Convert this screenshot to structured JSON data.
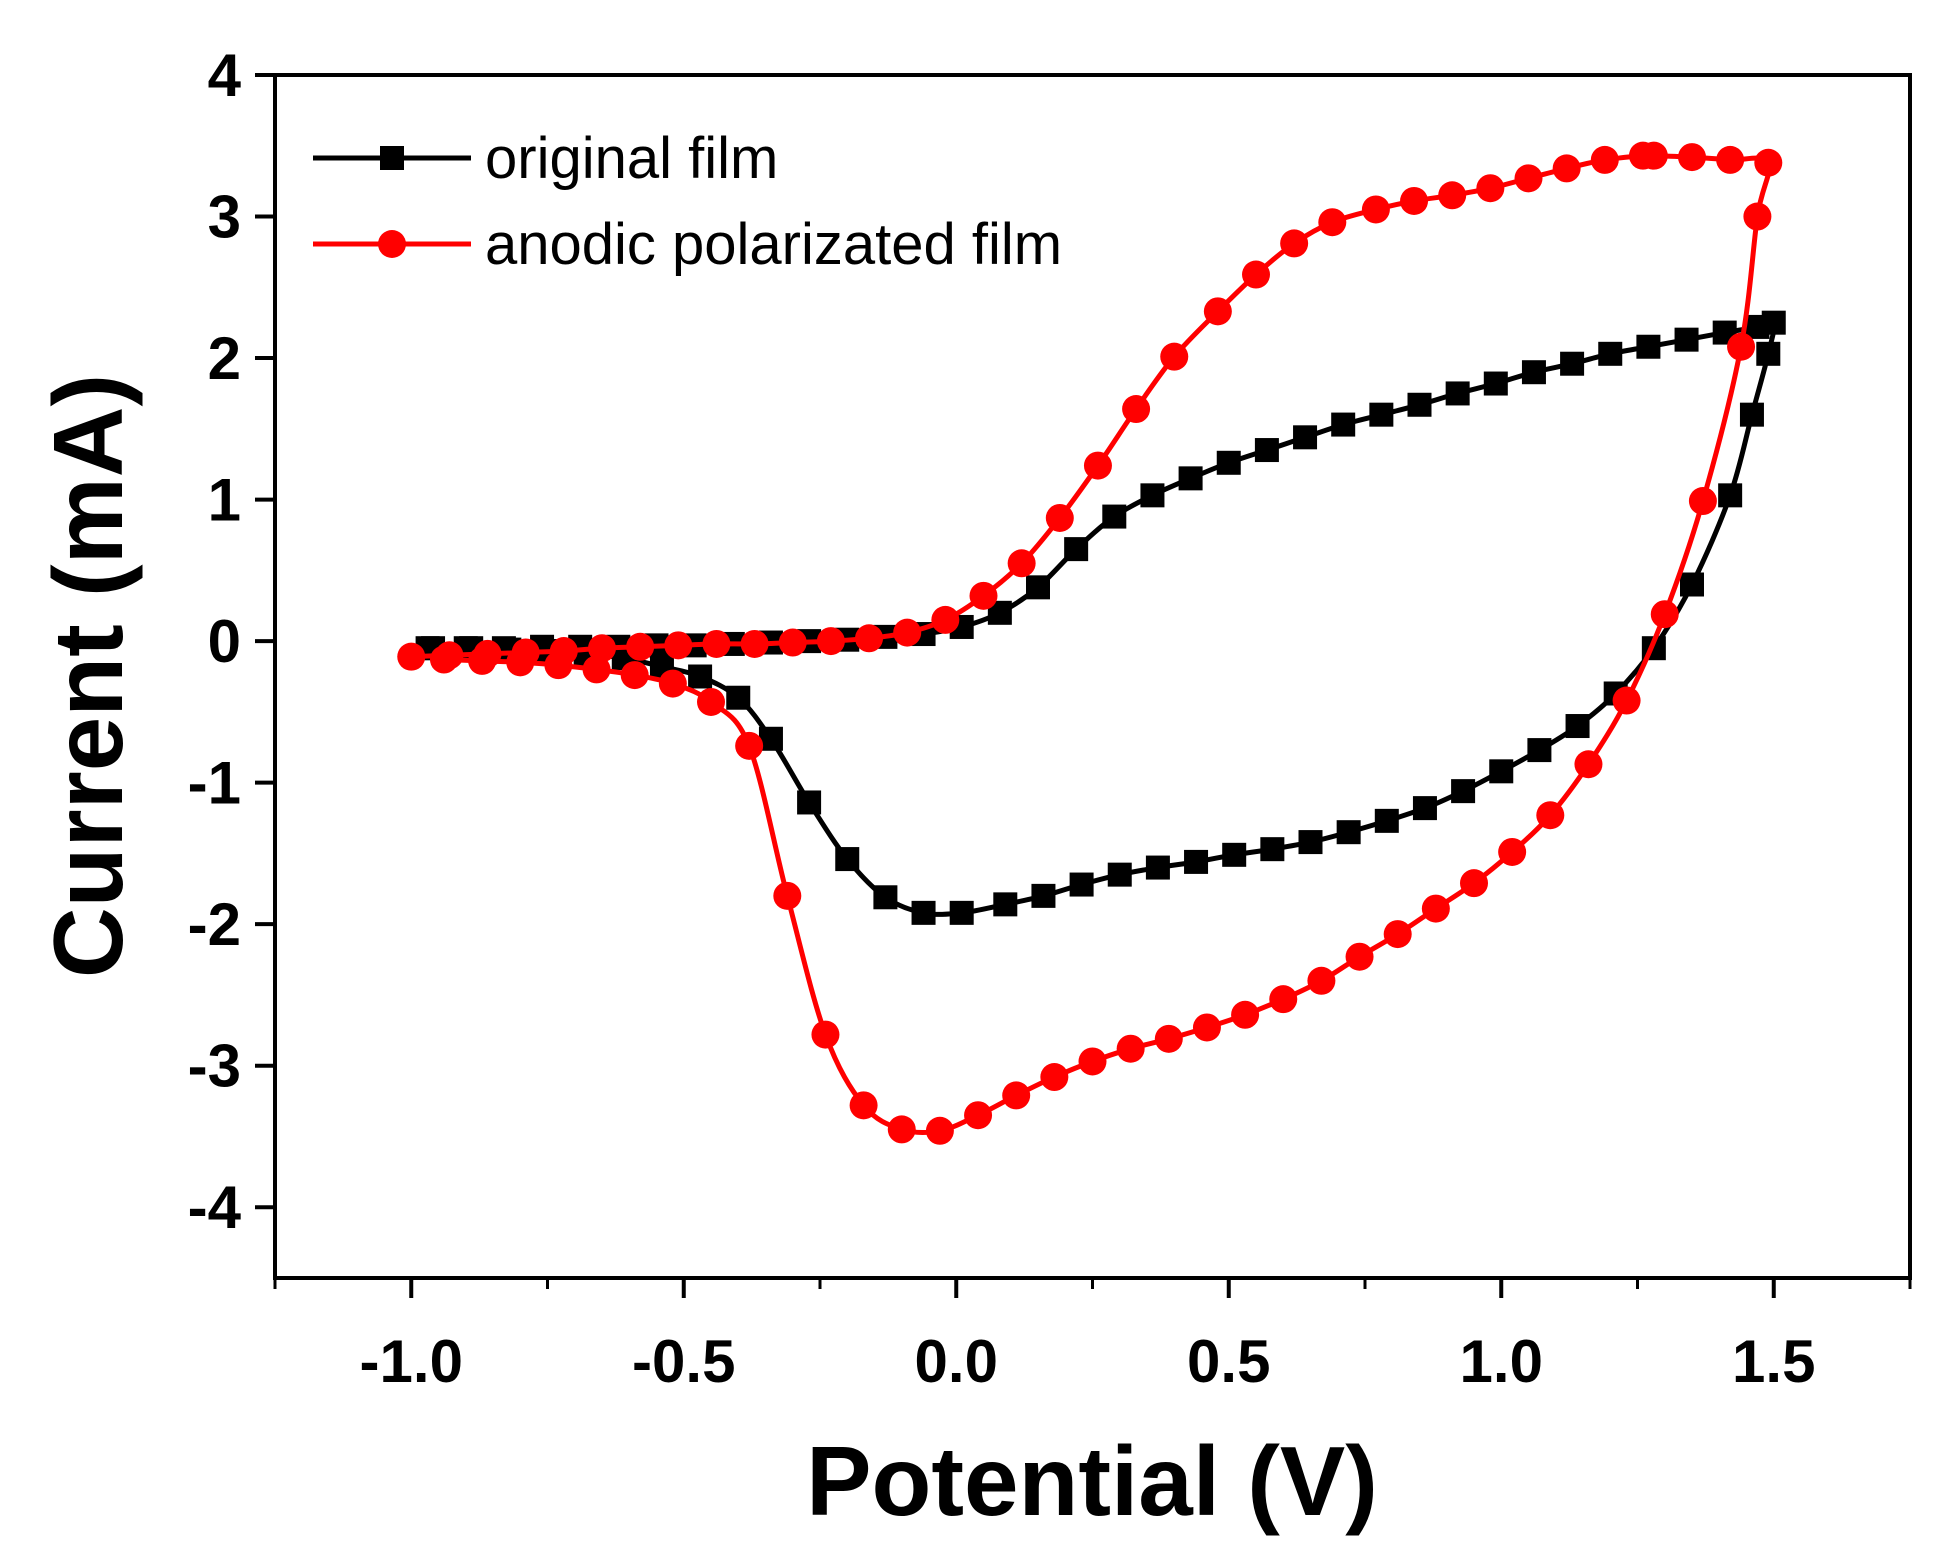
{
  "chart_data": {
    "type": "line",
    "title": "",
    "xlabel": "Potential (V)",
    "ylabel": "Current (mA)",
    "xlim": [
      -1.25,
      1.75
    ],
    "ylim": [
      -4.5,
      4.0
    ],
    "xticks": [
      -1.0,
      -0.5,
      0.0,
      0.5,
      1.0,
      1.5
    ],
    "xtick_labels": [
      "-1.0",
      "-0.5",
      "0.0",
      "0.5",
      "1.0",
      "1.5"
    ],
    "yticks": [
      -4,
      -3,
      -2,
      -1,
      0,
      1,
      2,
      3,
      4
    ],
    "ytick_labels": [
      "-4",
      "-3",
      "-2",
      "-1",
      "0",
      "1",
      "2",
      "3",
      "4"
    ],
    "grid": false,
    "legend_position": "top-left",
    "series": [
      {
        "name": "original film",
        "color": "#000000",
        "marker": "square",
        "x": [
          -0.97,
          -0.9,
          -0.83,
          -0.76,
          -0.69,
          -0.62,
          -0.55,
          -0.48,
          -0.41,
          -0.34,
          -0.27,
          -0.2,
          -0.13,
          -0.06,
          0.01,
          0.08,
          0.15,
          0.22,
          0.29,
          0.36,
          0.43,
          0.5,
          0.57,
          0.64,
          0.71,
          0.78,
          0.85,
          0.92,
          0.99,
          1.06,
          1.13,
          1.2,
          1.27,
          1.34,
          1.41,
          1.47,
          1.5,
          1.49,
          1.46,
          1.42,
          1.35,
          1.28,
          1.21,
          1.14,
          1.07,
          1.0,
          0.93,
          0.86,
          0.79,
          0.72,
          0.65,
          0.58,
          0.51,
          0.44,
          0.37,
          0.3,
          0.23,
          0.16,
          0.09,
          0.01,
          -0.06,
          -0.13,
          -0.2,
          -0.27,
          -0.34,
          -0.4,
          -0.47,
          -0.54,
          -0.61,
          -0.68,
          -0.75,
          -0.82,
          -0.89,
          -0.96
        ],
        "y": [
          -0.05,
          -0.05,
          -0.05,
          -0.04,
          -0.04,
          -0.04,
          -0.03,
          -0.03,
          -0.02,
          -0.01,
          0.0,
          0.01,
          0.03,
          0.05,
          0.1,
          0.2,
          0.38,
          0.65,
          0.88,
          1.03,
          1.15,
          1.26,
          1.35,
          1.44,
          1.53,
          1.6,
          1.67,
          1.75,
          1.82,
          1.9,
          1.96,
          2.03,
          2.08,
          2.13,
          2.18,
          2.22,
          2.25,
          2.03,
          1.6,
          1.03,
          0.4,
          -0.05,
          -0.37,
          -0.6,
          -0.77,
          -0.92,
          -1.06,
          -1.18,
          -1.27,
          -1.35,
          -1.42,
          -1.47,
          -1.51,
          -1.56,
          -1.6,
          -1.65,
          -1.72,
          -1.8,
          -1.86,
          -1.92,
          -1.92,
          -1.81,
          -1.54,
          -1.14,
          -0.69,
          -0.4,
          -0.25,
          -0.18,
          -0.12,
          -0.09,
          -0.07,
          -0.06,
          -0.05,
          -0.05
        ]
      },
      {
        "name": "anodic polarizated film",
        "color": "#ff0000",
        "marker": "circle",
        "x": [
          -1.0,
          -0.93,
          -0.86,
          -0.79,
          -0.72,
          -0.65,
          -0.58,
          -0.51,
          -0.44,
          -0.37,
          -0.3,
          -0.23,
          -0.16,
          -0.09,
          -0.02,
          0.05,
          0.12,
          0.19,
          0.26,
          0.33,
          0.4,
          0.48,
          0.55,
          0.62,
          0.69,
          0.77,
          0.84,
          0.91,
          0.98,
          1.05,
          1.12,
          1.19,
          1.26,
          1.28,
          1.35,
          1.42,
          1.49,
          1.47,
          1.44,
          1.37,
          1.3,
          1.23,
          1.16,
          1.09,
          1.02,
          0.95,
          0.88,
          0.81,
          0.74,
          0.67,
          0.6,
          0.53,
          0.46,
          0.39,
          0.32,
          0.25,
          0.18,
          0.11,
          0.04,
          -0.03,
          -0.1,
          -0.17,
          -0.24,
          -0.31,
          -0.38,
          -0.45,
          -0.52,
          -0.59,
          -0.66,
          -0.73,
          -0.8,
          -0.87,
          -0.94
        ],
        "y": [
          -0.11,
          -0.1,
          -0.09,
          -0.08,
          -0.07,
          -0.05,
          -0.04,
          -0.03,
          -0.02,
          -0.02,
          -0.01,
          0.0,
          0.02,
          0.06,
          0.15,
          0.32,
          0.55,
          0.87,
          1.24,
          1.64,
          2.01,
          2.33,
          2.59,
          2.81,
          2.96,
          3.05,
          3.11,
          3.15,
          3.2,
          3.27,
          3.34,
          3.4,
          3.43,
          3.43,
          3.42,
          3.4,
          3.38,
          3.0,
          2.08,
          0.99,
          0.19,
          -0.42,
          -0.87,
          -1.23,
          -1.49,
          -1.71,
          -1.89,
          -2.07,
          -2.23,
          -2.4,
          -2.53,
          -2.64,
          -2.73,
          -2.81,
          -2.88,
          -2.97,
          -3.08,
          -3.21,
          -3.35,
          -3.46,
          -3.45,
          -3.28,
          -2.78,
          -1.8,
          -0.74,
          -0.43,
          -0.3,
          -0.24,
          -0.2,
          -0.17,
          -0.15,
          -0.14,
          -0.13
        ]
      }
    ]
  }
}
